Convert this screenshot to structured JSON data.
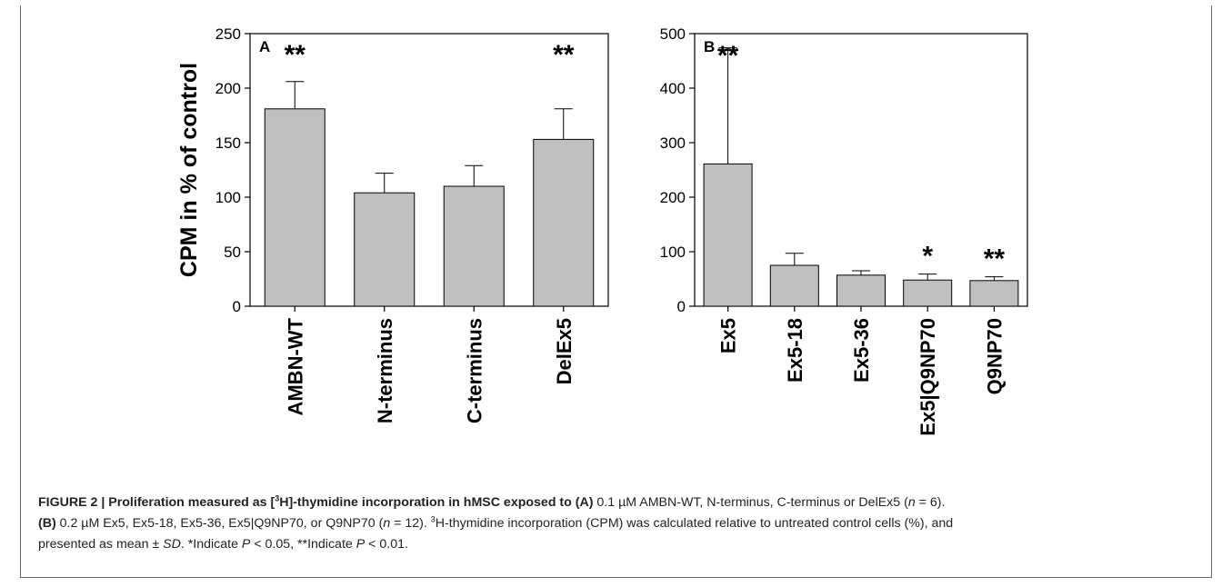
{
  "chart_data": [
    {
      "type": "bar",
      "panel_label": "A",
      "ylabel": "CPM in % of control",
      "ylim": [
        0,
        250
      ],
      "yticks": [
        0,
        50,
        100,
        150,
        200,
        250
      ],
      "categories": [
        "AMBN-WT",
        "N-terminus",
        "C-terminus",
        "DelEx5"
      ],
      "values": [
        181,
        104,
        110,
        153
      ],
      "errors": [
        25,
        18,
        19,
        28
      ],
      "annotations": [
        "**",
        "",
        "",
        "**"
      ],
      "bar_color": "#c0c0c0",
      "grid": false
    },
    {
      "type": "bar",
      "panel_label": "B",
      "ylabel": "",
      "ylim": [
        0,
        500
      ],
      "yticks": [
        0,
        100,
        200,
        300,
        400,
        500
      ],
      "categories": [
        "Ex5",
        "Ex5-18",
        "Ex5-36",
        "Ex5|Q9NP70",
        "Q9NP70"
      ],
      "values": [
        261,
        75,
        57,
        48,
        47
      ],
      "errors": [
        213,
        22,
        8,
        11,
        7
      ],
      "annotations": [
        "**",
        "",
        "",
        "*",
        "**"
      ],
      "bar_color": "#c0c0c0",
      "grid": false
    }
  ],
  "caption": {
    "line1_lead": "FIGURE 2 | Proliferation measured as [",
    "line1_sup": "3",
    "line1_lead_rest": "H]-thymidine incorporation in hMSC exposed to (A)",
    "line1_text": " 0.1 µM AMBN-WT, N-terminus, C-terminus or DelEx5 (",
    "line1_n": "n",
    "line1_end": " = 6).",
    "line2_label": "(B)",
    "line2_text": " 0.2 µM Ex5, Ex5-18, Ex5-36, Ex5|Q9NP70, or Q9NP70 (",
    "line2_n": "n",
    "line2_mid": " = 12). ",
    "line2_sup": "3",
    "line2_end": "H-thymidine incorporation (CPM) was calculated relative to untreated control cells (%), and",
    "line3_a": "presented as mean ± ",
    "line3_sd": "SD",
    "line3_b": ". *Indicate ",
    "line3_p1": "P",
    "line3_c": " < 0.05, **Indicate ",
    "line3_p2": "P",
    "line3_d": " < 0.01."
  }
}
